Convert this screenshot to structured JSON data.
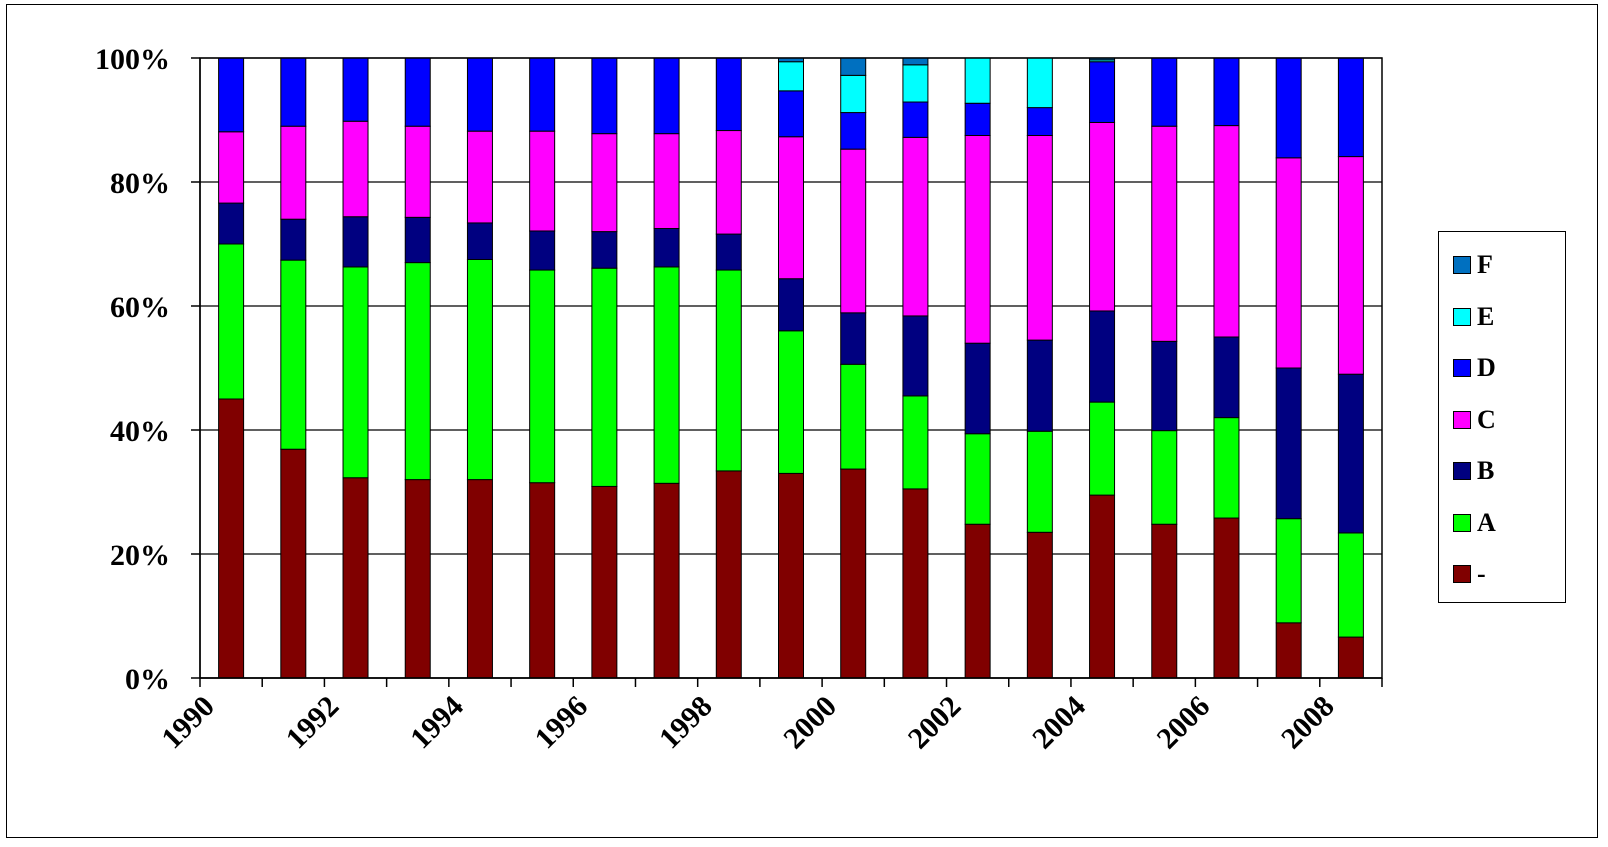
{
  "chart_data": {
    "type": "bar",
    "stacked": true,
    "percent": true,
    "title": "",
    "xlabel": "",
    "ylabel": "",
    "ylim": [
      0,
      100
    ],
    "yticks": [
      "0%",
      "20%",
      "40%",
      "60%",
      "80%",
      "100%"
    ],
    "xticks": [
      "1990",
      "1992",
      "1994",
      "1996",
      "1998",
      "2000",
      "2002",
      "2004",
      "2006",
      "2008"
    ],
    "grid": "horizontal",
    "legend_position": "right",
    "categories": [
      "1990",
      "1991",
      "1992",
      "1993",
      "1994",
      "1995",
      "1996",
      "1997",
      "1998",
      "1999",
      "2000",
      "2001",
      "2002",
      "2003",
      "2004",
      "2005",
      "2006",
      "2007",
      "2008"
    ],
    "series": [
      {
        "name": "-",
        "color": "#800000",
        "values": [
          45.0,
          36.9,
          32.3,
          32.0,
          32.0,
          31.5,
          30.9,
          31.4,
          33.4,
          33.0,
          33.7,
          30.5,
          24.8,
          23.5,
          29.5,
          24.8,
          25.8,
          8.9,
          6.6
        ]
      },
      {
        "name": "A",
        "color": "#00ff00",
        "values": [
          25.0,
          30.5,
          34.0,
          35.0,
          35.5,
          34.3,
          35.2,
          34.9,
          32.4,
          23.0,
          16.9,
          15.0,
          14.6,
          16.3,
          15.0,
          15.1,
          16.2,
          16.8,
          16.8
        ]
      },
      {
        "name": "B",
        "color": "#000080",
        "values": [
          6.6,
          6.6,
          8.1,
          7.3,
          5.9,
          6.3,
          5.9,
          6.2,
          5.8,
          8.4,
          8.3,
          12.9,
          14.6,
          14.7,
          14.7,
          14.4,
          13.0,
          24.3,
          25.6
        ]
      },
      {
        "name": "C",
        "color": "#ff00ff",
        "values": [
          11.5,
          15.0,
          15.4,
          14.7,
          14.8,
          16.1,
          15.8,
          15.3,
          16.7,
          22.9,
          26.4,
          28.8,
          33.5,
          33.0,
          30.4,
          34.7,
          34.1,
          33.9,
          35.1
        ]
      },
      {
        "name": "D",
        "color": "#0000ff",
        "values": [
          11.9,
          11.0,
          10.2,
          11.0,
          11.8,
          11.8,
          12.2,
          12.2,
          11.7,
          7.4,
          5.9,
          5.7,
          5.2,
          4.5,
          9.8,
          11.0,
          10.9,
          16.1,
          15.9
        ]
      },
      {
        "name": "E",
        "color": "#00ffff",
        "values": [
          0,
          0,
          0,
          0,
          0,
          0,
          0,
          0,
          0,
          4.7,
          6.0,
          6.0,
          7.3,
          8.0,
          0.3,
          0,
          0,
          0,
          0
        ]
      },
      {
        "name": "F",
        "color": "#0070c0",
        "values": [
          0,
          0,
          0,
          0,
          0,
          0,
          0,
          0,
          0,
          0.6,
          2.8,
          1.1,
          0,
          0,
          0.3,
          0,
          0,
          0,
          0
        ]
      }
    ]
  }
}
